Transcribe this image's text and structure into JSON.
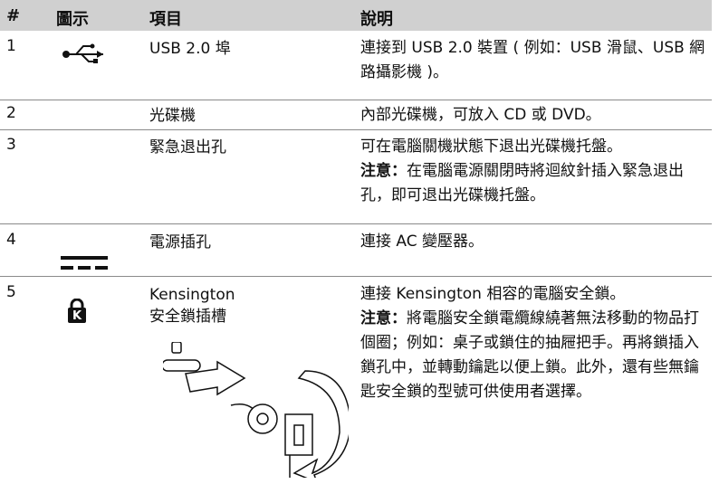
{
  "table": {
    "header": [
      "#",
      "圖示",
      "項目",
      "說明"
    ],
    "rows": [
      {
        "number": "1",
        "item": [
          "USB 2.0 埠"
        ],
        "description": "連接到 USB 2.0 裝置 ( 例如：USB 滑鼠、USB 網路攝影機 )。"
      },
      {
        "number": "2",
        "item": [
          "光碟機"
        ],
        "description": "內部光碟機，可放入 CD 或 DVD。"
      },
      {
        "number": "3",
        "item": [
          "緊急退出孔"
        ],
        "description": "可在電腦關機狀態下退出光碟機托盤。",
        "note_label": "注意：",
        "note": "在電腦電源關閉時將迴紋針插入緊急退出孔，即可退出光碟機托盤。"
      },
      {
        "number": "4",
        "item": [
          "電源插孔"
        ],
        "description": "連接 AC 變壓器。"
      },
      {
        "number": "5",
        "item": [
          "Kensington",
          "安全鎖插槽"
        ],
        "description": "連接 Kensington 相容的電腦安全鎖。",
        "note_label": "注意：",
        "note": "將電腦安全鎖電纜線繞著無法移動的物品打個圈；例如：桌子或鎖住的抽屜把手。再將鎖插入鎖孔中，並轉動鑰匙以便上鎖。此外，還有些無鑰匙安全鎖的型號可供使用者選擇。"
      }
    ]
  }
}
